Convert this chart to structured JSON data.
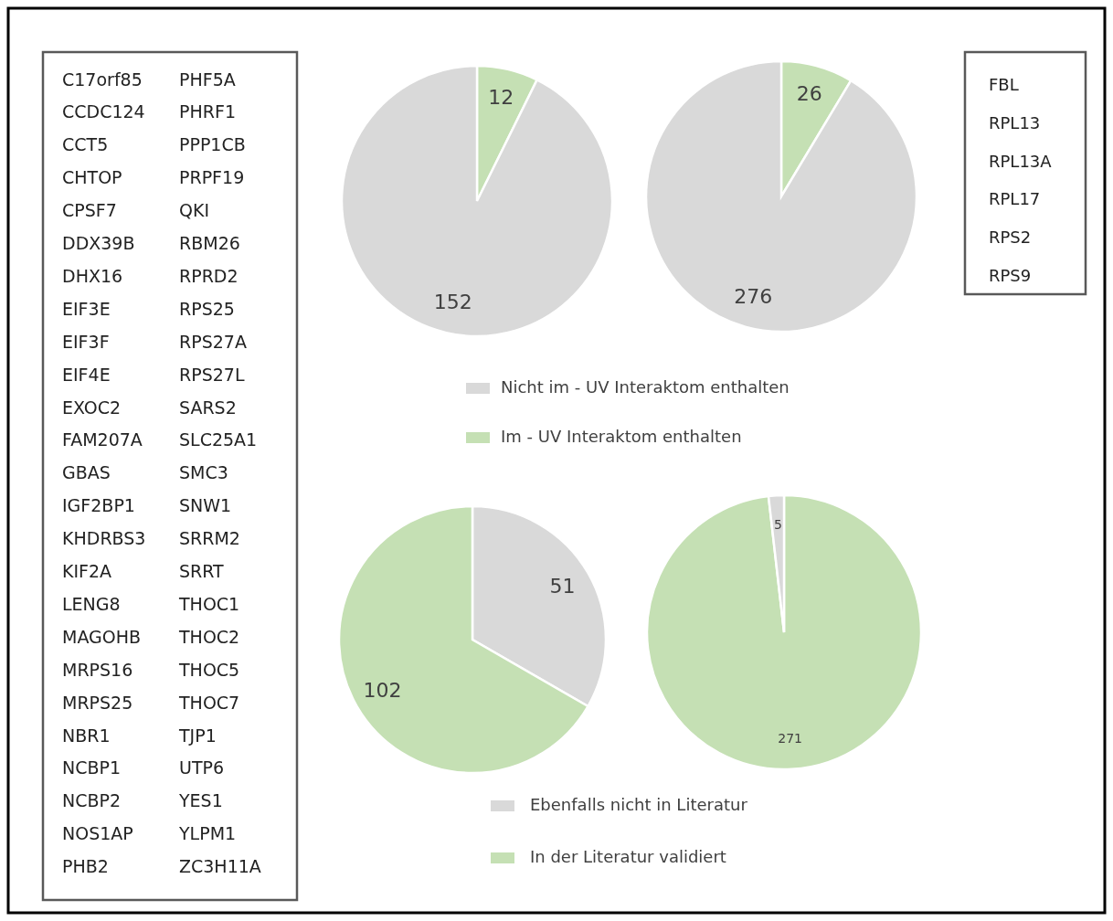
{
  "chart_data": [
    {
      "type": "other",
      "annotations": [
        "C17orf85",
        "CCDC124",
        "CCT5",
        "CHTOP",
        "CPSF7",
        "DDX39B",
        "DHX16",
        "EIF3E",
        "EIF3F",
        "EIF4E",
        "EXOC2",
        "FAM207A",
        "GBAS",
        "IGF2BP1",
        "KHDRBS3",
        "KIF2A",
        "LENG8",
        "MAGOHB",
        "MRPS16",
        "MRPS25",
        "NBR1",
        "NCBP1",
        "NCBP2",
        "NOS1AP",
        "PHB2",
        "PHF5A",
        "PHRF1",
        "PPP1CB",
        "PRPF19",
        "QKI",
        "RBM26",
        "RPRD2",
        "RPS25",
        "RPS27A",
        "RPS27L",
        "SARS2",
        "SLC25A1",
        "SMC3",
        "SNW1",
        "SRRM2",
        "SRRT",
        "THOC1",
        "THOC2",
        "THOC5",
        "THOC7",
        "TJP1",
        "UTP6",
        "YES1",
        "YLPM1",
        "ZC3H11A"
      ]
    },
    {
      "type": "pie",
      "categories": [
        "Im  - UV Interaktom enthalten",
        "Nicht im  - UV Interaktom enthalten"
      ],
      "values": [
        12,
        152
      ],
      "colors": [
        "#c5e0b4",
        "#d9d9d9"
      ],
      "data_labels": true,
      "legend": "bottom"
    },
    {
      "type": "pie",
      "categories": [
        null,
        null
      ],
      "values": [
        26,
        276
      ],
      "colors": [
        "#c5e0b4",
        "#d9d9d9"
      ],
      "data_labels": true,
      "legend": false
    },
    {
      "type": "pie",
      "categories": [
        "Ebenfalls nicht in Literatur",
        "In der Literatur validiert"
      ],
      "values": [
        51,
        102
      ],
      "colors": [
        "#d9d9d9",
        "#c5e0b4"
      ],
      "data_labels": true,
      "legend": "bottom"
    },
    {
      "type": "pie",
      "categories": [
        null,
        null
      ],
      "values": [
        271,
        5
      ],
      "colors": [
        "#c5e0b4",
        "#d9d9d9"
      ],
      "data_labels": true,
      "legend": false
    },
    {
      "type": "other",
      "annotations": [
        "FBL",
        "RPL13",
        "RPL13A",
        "RPL17",
        "RPS2",
        "RPS9"
      ]
    }
  ]
}
